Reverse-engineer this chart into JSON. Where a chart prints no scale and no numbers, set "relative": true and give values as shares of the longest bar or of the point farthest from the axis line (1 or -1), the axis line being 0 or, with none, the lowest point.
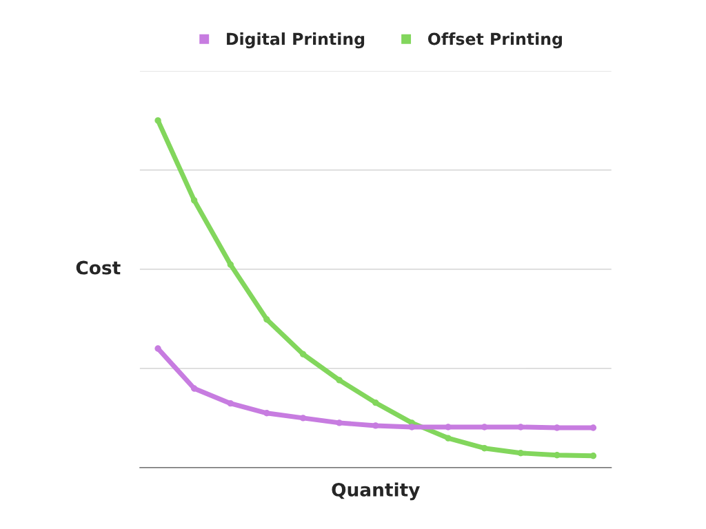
{
  "chart_data": {
    "type": "line",
    "xlabel": "Quantity",
    "ylabel": "Cost",
    "relative": true,
    "grid": "y",
    "legend": "top",
    "marker": "circle",
    "line_style": "solid",
    "categories": [
      null,
      null,
      null,
      null,
      null,
      null,
      null,
      null,
      null,
      null,
      null,
      null,
      null
    ],
    "series": [
      {
        "name": "Digital Printing",
        "color": "#c77ce0",
        "values": [
          0.343,
          0.228,
          0.185,
          0.157,
          0.143,
          0.129,
          0.121,
          0.117,
          0.117,
          0.117,
          0.117,
          0.115,
          0.115
        ]
      },
      {
        "name": "Offset Printing",
        "color": "#82d65c",
        "values": [
          1,
          0.77,
          0.585,
          0.427,
          0.327,
          0.252,
          0.187,
          0.129,
          0.085,
          0.056,
          0.042,
          0.036,
          0.034
        ]
      }
    ]
  }
}
